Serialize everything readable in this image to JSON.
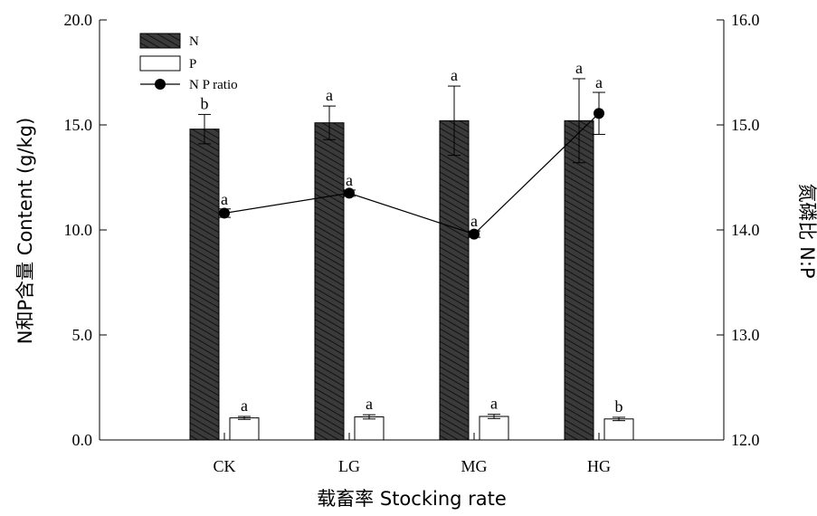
{
  "chart_data": {
    "type": "bar",
    "categories": [
      "CK",
      "LG",
      "MG",
      "HG"
    ],
    "xlabel": "载畜率 Stocking rate",
    "ylabel": "N和P含量 Content (g/kg)",
    "ylabel_right": "氮磷比 N:P",
    "ylim": [
      0,
      20
    ],
    "ylim_right": [
      12,
      16
    ],
    "yticks": [
      "0.0",
      "5.0",
      "10.0",
      "15.0",
      "20.0"
    ],
    "yticks_right": [
      "12.0",
      "13.0",
      "14.0",
      "15.0",
      "16.0"
    ],
    "legend_position": "top-left",
    "grid": false,
    "series": [
      {
        "name": "N",
        "kind": "bar",
        "fill": "#333333",
        "hatch": true,
        "axis": "left",
        "values": [
          14.8,
          15.1,
          15.2,
          15.2
        ],
        "err_upper": [
          0.7,
          0.8,
          1.65,
          2.0
        ],
        "err_lower": [
          0.7,
          0.8,
          1.65,
          2.0
        ],
        "labels": [
          "b",
          "a",
          "a",
          "a"
        ]
      },
      {
        "name": "P",
        "kind": "bar",
        "fill": "#ffffff",
        "hatch": false,
        "axis": "left",
        "values": [
          1.05,
          1.1,
          1.12,
          1.0
        ],
        "err_upper": [
          0.07,
          0.1,
          0.1,
          0.08
        ],
        "err_lower": [
          0.07,
          0.1,
          0.1,
          0.08
        ],
        "labels": [
          "a",
          "a",
          "a",
          "b"
        ]
      },
      {
        "name": "N P ratio",
        "kind": "line",
        "color": "#000000",
        "axis": "right",
        "values": [
          14.16,
          14.35,
          13.96,
          15.11
        ],
        "err_upper": [
          0.04,
          0.03,
          0.03,
          0.2
        ],
        "err_lower": [
          0.04,
          0.03,
          0.03,
          0.2
        ],
        "labels": [
          "a",
          "a",
          "a",
          "a"
        ]
      }
    ]
  }
}
